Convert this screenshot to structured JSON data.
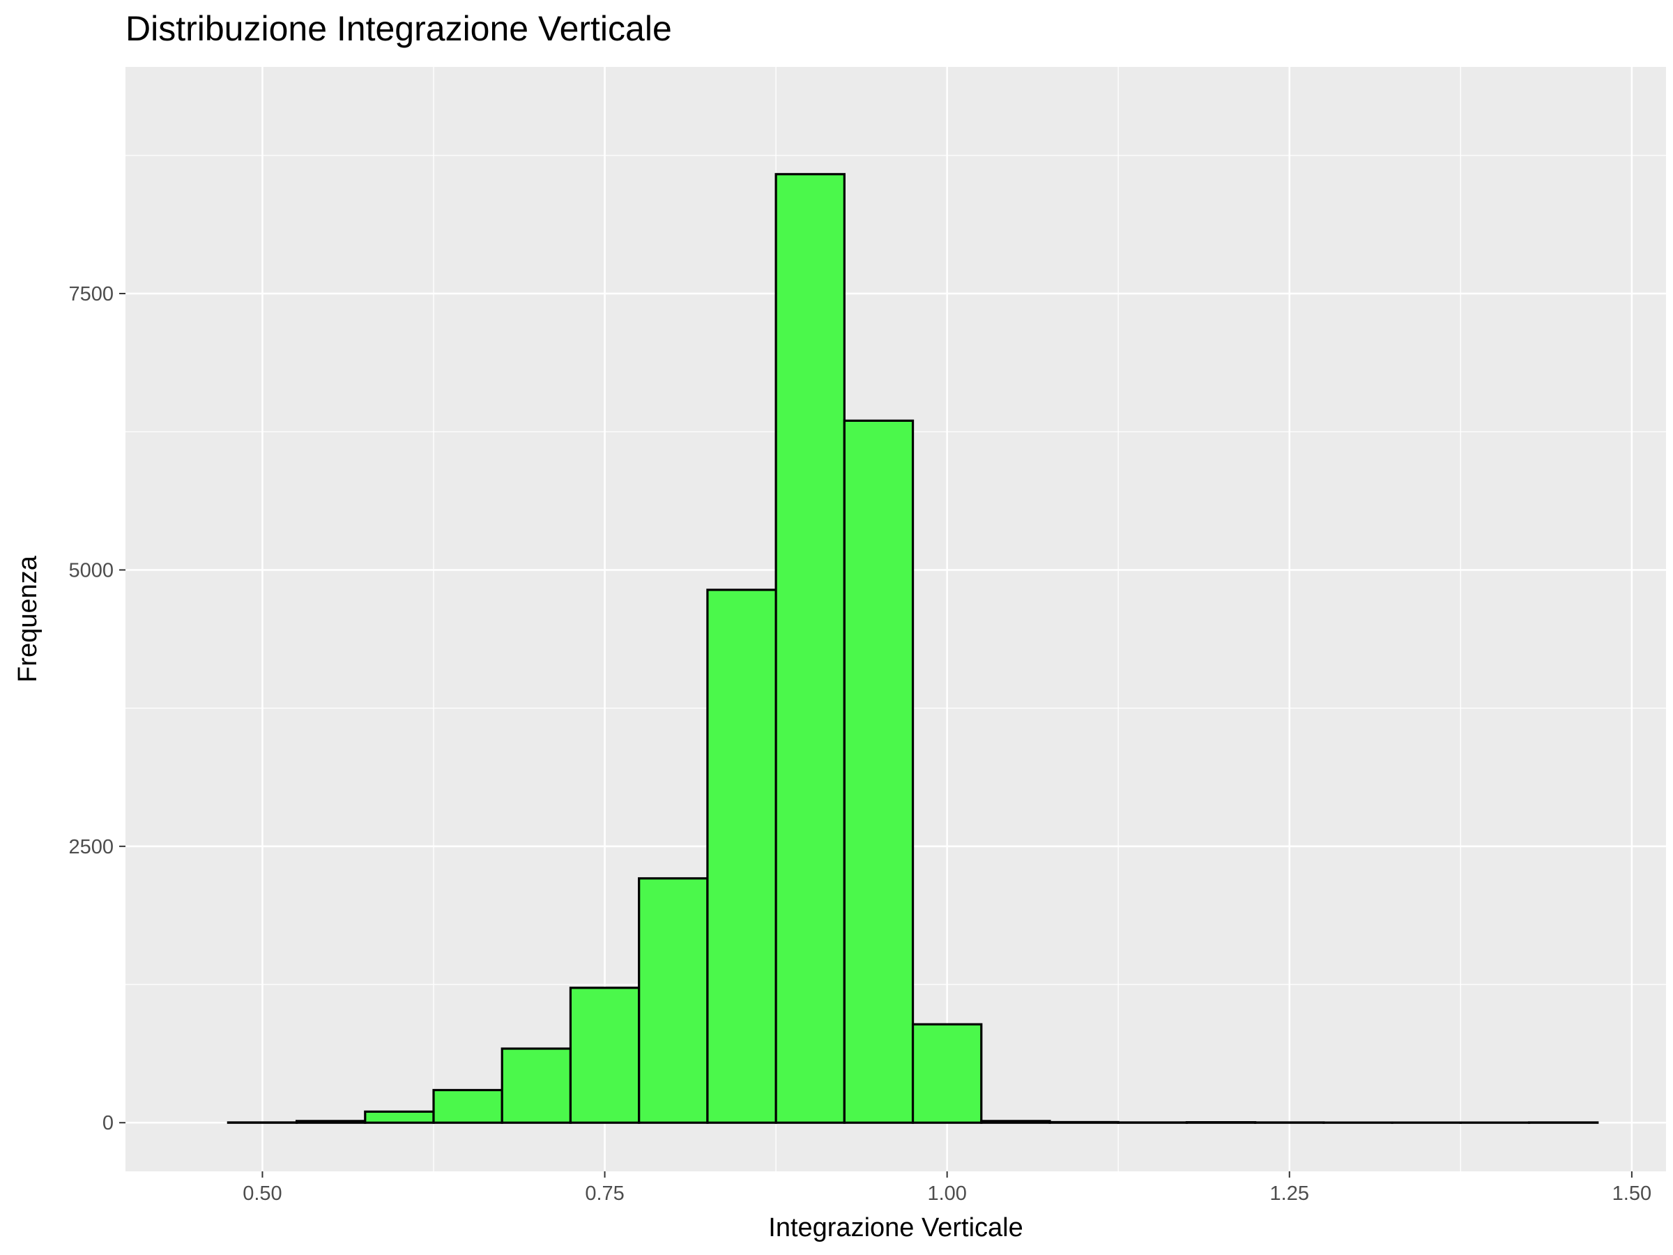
{
  "chart_data": {
    "type": "bar",
    "title": "Distribuzione Integrazione Verticale",
    "xlabel": "Integrazione Verticale",
    "ylabel": "Frequenza",
    "xlim": [
      0.4,
      1.525
    ],
    "ylim": [
      -440,
      9550
    ],
    "x_ticks": [
      0.5,
      0.75,
      1.0,
      1.25,
      1.5
    ],
    "x_tick_labels": [
      "0.50",
      "0.75",
      "1.00",
      "1.25",
      "1.50"
    ],
    "y_ticks": [
      0,
      2500,
      5000,
      7500
    ],
    "y_tick_labels": [
      "0",
      "2500",
      "5000",
      "7500"
    ],
    "bin_width": 0.05,
    "bins": [
      {
        "x0": 0.475,
        "x1": 0.525,
        "value": 2
      },
      {
        "x0": 0.525,
        "x1": 0.575,
        "value": 15
      },
      {
        "x0": 0.575,
        "x1": 0.625,
        "value": 100
      },
      {
        "x0": 0.625,
        "x1": 0.675,
        "value": 295
      },
      {
        "x0": 0.675,
        "x1": 0.725,
        "value": 670
      },
      {
        "x0": 0.725,
        "x1": 0.775,
        "value": 1220
      },
      {
        "x0": 0.775,
        "x1": 0.825,
        "value": 2210
      },
      {
        "x0": 0.825,
        "x1": 0.875,
        "value": 4820
      },
      {
        "x0": 0.875,
        "x1": 0.925,
        "value": 8580
      },
      {
        "x0": 0.925,
        "x1": 0.975,
        "value": 6350
      },
      {
        "x0": 0.975,
        "x1": 1.025,
        "value": 890
      },
      {
        "x0": 1.025,
        "x1": 1.075,
        "value": 15
      },
      {
        "x0": 1.075,
        "x1": 1.125,
        "value": 5
      },
      {
        "x0": 1.125,
        "x1": 1.175,
        "value": 2
      },
      {
        "x0": 1.175,
        "x1": 1.225,
        "value": 4
      },
      {
        "x0": 1.225,
        "x1": 1.275,
        "value": 2
      },
      {
        "x0": 1.275,
        "x1": 1.325,
        "value": 1
      },
      {
        "x0": 1.325,
        "x1": 1.375,
        "value": 1
      },
      {
        "x0": 1.375,
        "x1": 1.425,
        "value": 1
      },
      {
        "x0": 1.425,
        "x1": 1.475,
        "value": 2
      }
    ],
    "grid": true,
    "legend": "none",
    "colors": {
      "bar_fill": "#4BF84B",
      "bar_outline": "#000000",
      "panel_background": "#EBEBEB",
      "grid": "#FFFFFF",
      "tick_label": "#4D4D4D"
    }
  }
}
